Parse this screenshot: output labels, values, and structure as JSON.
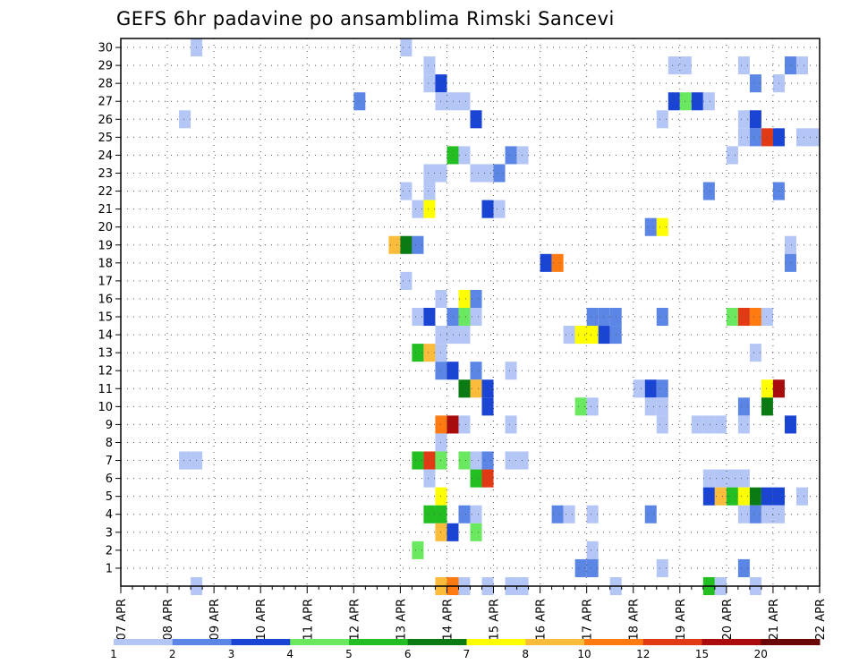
{
  "chart_data": {
    "type": "heatmap",
    "title": "GEFS 6hr padavine po ansamblima Rimski Sancevi",
    "xlabel": "",
    "ylabel": "",
    "x_ticks": [
      "07 APR",
      "08 APR",
      "09 APR",
      "10 APR",
      "11 APR",
      "12 APR",
      "13 APR",
      "14 APR",
      "15 APR",
      "16 APR",
      "17 APR",
      "18 APR",
      "19 APR",
      "20 APR",
      "21 APR",
      "22 APR"
    ],
    "y_ticks": [
      "1",
      "2",
      "3",
      "4",
      "5",
      "6",
      "7",
      "8",
      "9",
      "10",
      "11",
      "12",
      "13",
      "14",
      "15",
      "16",
      "17",
      "18",
      "19",
      "20",
      "21",
      "22",
      "23",
      "24",
      "25",
      "26",
      "27",
      "28",
      "29",
      "30"
    ],
    "xlim_steps": [
      0,
      60
    ],
    "ylim_members": [
      0,
      30
    ],
    "grid": true,
    "colorbar": {
      "labels": [
        "1",
        "2",
        "3",
        "4",
        "5",
        "6",
        "7",
        "8",
        "10",
        "12",
        "15",
        "20"
      ],
      "colors": [
        "#b4c6f5",
        "#5c86e6",
        "#1a44d4",
        "#6ae860",
        "#22be22",
        "#0a7a12",
        "#ffff00",
        "#fbbc3c",
        "#ff7a10",
        "#e23a14",
        "#a80c0c",
        "#6a0606"
      ]
    },
    "cells_note_units": "step index (6h steps from 07 APR 00Z), ensemble member, precipitation level index 1-12",
    "cells": [
      [
        6.5,
        30,
        1
      ],
      [
        24.5,
        30,
        1
      ],
      [
        26.5,
        29,
        1
      ],
      [
        47.5,
        29,
        1
      ],
      [
        48.5,
        29,
        1
      ],
      [
        53.5,
        29,
        1
      ],
      [
        57.5,
        29,
        2
      ],
      [
        58.5,
        29,
        1
      ],
      [
        26.5,
        28,
        1
      ],
      [
        27.5,
        28,
        3
      ],
      [
        54.5,
        28,
        2
      ],
      [
        56.5,
        28,
        1
      ],
      [
        20.5,
        27,
        2
      ],
      [
        27.5,
        27,
        1
      ],
      [
        28.5,
        27,
        1
      ],
      [
        29.5,
        27,
        1
      ],
      [
        47.5,
        27,
        3
      ],
      [
        48.5,
        27,
        4
      ],
      [
        49.5,
        27,
        3
      ],
      [
        50.5,
        27,
        1
      ],
      [
        5.5,
        26,
        1
      ],
      [
        30.5,
        26,
        3
      ],
      [
        46.5,
        26,
        1
      ],
      [
        53.5,
        26,
        1
      ],
      [
        54.5,
        26,
        3
      ],
      [
        53.5,
        25,
        1
      ],
      [
        54.5,
        25,
        2
      ],
      [
        55.5,
        25,
        10
      ],
      [
        56.5,
        25,
        3
      ],
      [
        58.5,
        25,
        1
      ],
      [
        59.5,
        25,
        1
      ],
      [
        28.5,
        24,
        5
      ],
      [
        29.5,
        24,
        1
      ],
      [
        33.5,
        24,
        2
      ],
      [
        34.5,
        24,
        1
      ],
      [
        52.5,
        24,
        1
      ],
      [
        26.5,
        23,
        1
      ],
      [
        27.5,
        23,
        1
      ],
      [
        30.5,
        23,
        1
      ],
      [
        31.5,
        23,
        1
      ],
      [
        32.5,
        23,
        2
      ],
      [
        24.5,
        22,
        1
      ],
      [
        26.5,
        22,
        1
      ],
      [
        50.5,
        22,
        2
      ],
      [
        56.5,
        22,
        2
      ],
      [
        25.5,
        21,
        1
      ],
      [
        26.5,
        21,
        7
      ],
      [
        31.5,
        21,
        3
      ],
      [
        32.5,
        21,
        1
      ],
      [
        45.5,
        20,
        2
      ],
      [
        46.5,
        20,
        7
      ],
      [
        23.5,
        19,
        8
      ],
      [
        24.5,
        19,
        6
      ],
      [
        25.5,
        19,
        2
      ],
      [
        57.5,
        19,
        1
      ],
      [
        36.5,
        18,
        3
      ],
      [
        37.5,
        18,
        9
      ],
      [
        57.5,
        18,
        2
      ],
      [
        24.5,
        17,
        1
      ],
      [
        27.5,
        16,
        1
      ],
      [
        29.5,
        16,
        7
      ],
      [
        30.5,
        16,
        2
      ],
      [
        25.5,
        15,
        1
      ],
      [
        26.5,
        15,
        3
      ],
      [
        28.5,
        15,
        2
      ],
      [
        29.5,
        15,
        4
      ],
      [
        30.5,
        15,
        1
      ],
      [
        40.5,
        15,
        2
      ],
      [
        41.5,
        15,
        2
      ],
      [
        42.5,
        15,
        2
      ],
      [
        46.5,
        15,
        2
      ],
      [
        52.5,
        15,
        4
      ],
      [
        53.5,
        15,
        10
      ],
      [
        54.5,
        15,
        9
      ],
      [
        55.5,
        15,
        1
      ],
      [
        27.5,
        14,
        1
      ],
      [
        28.5,
        14,
        1
      ],
      [
        29.5,
        14,
        1
      ],
      [
        38.5,
        14,
        1
      ],
      [
        39.5,
        14,
        7
      ],
      [
        40.5,
        14,
        7
      ],
      [
        41.5,
        14,
        3
      ],
      [
        42.5,
        14,
        2
      ],
      [
        25.5,
        13,
        5
      ],
      [
        26.5,
        13,
        8
      ],
      [
        27.5,
        13,
        1
      ],
      [
        54.5,
        13,
        1
      ],
      [
        27.5,
        12,
        2
      ],
      [
        28.5,
        12,
        3
      ],
      [
        30.5,
        12,
        2
      ],
      [
        33.5,
        12,
        1
      ],
      [
        29.5,
        11,
        6
      ],
      [
        30.5,
        11,
        8
      ],
      [
        31.5,
        11,
        3
      ],
      [
        44.5,
        11,
        1
      ],
      [
        45.5,
        11,
        3
      ],
      [
        46.5,
        11,
        2
      ],
      [
        55.5,
        11,
        7
      ],
      [
        56.5,
        11,
        11
      ],
      [
        31.5,
        10,
        3
      ],
      [
        39.5,
        10,
        4
      ],
      [
        40.5,
        10,
        1
      ],
      [
        45.5,
        10,
        1
      ],
      [
        46.5,
        10,
        1
      ],
      [
        53.5,
        10,
        2
      ],
      [
        55.5,
        10,
        6
      ],
      [
        27.5,
        9,
        9
      ],
      [
        28.5,
        9,
        11
      ],
      [
        29.5,
        9,
        1
      ],
      [
        33.5,
        9,
        1
      ],
      [
        46.5,
        9,
        1
      ],
      [
        49.5,
        9,
        1
      ],
      [
        50.5,
        9,
        1
      ],
      [
        51.5,
        9,
        1
      ],
      [
        53.5,
        9,
        1
      ],
      [
        57.5,
        9,
        3
      ],
      [
        27.5,
        8,
        1
      ],
      [
        5.5,
        7,
        1
      ],
      [
        6.5,
        7,
        1
      ],
      [
        25.5,
        7,
        5
      ],
      [
        26.5,
        7,
        10
      ],
      [
        27.5,
        7,
        4
      ],
      [
        29.5,
        7,
        4
      ],
      [
        30.5,
        7,
        1
      ],
      [
        31.5,
        7,
        2
      ],
      [
        33.5,
        7,
        1
      ],
      [
        34.5,
        7,
        1
      ],
      [
        26.5,
        6,
        1
      ],
      [
        30.5,
        6,
        5
      ],
      [
        31.5,
        6,
        10
      ],
      [
        50.5,
        6,
        1
      ],
      [
        51.5,
        6,
        1
      ],
      [
        52.5,
        6,
        1
      ],
      [
        53.5,
        6,
        1
      ],
      [
        27.5,
        5,
        7
      ],
      [
        50.5,
        5,
        3
      ],
      [
        51.5,
        5,
        8
      ],
      [
        52.5,
        5,
        5
      ],
      [
        53.5,
        5,
        7
      ],
      [
        54.5,
        5,
        6
      ],
      [
        55.5,
        5,
        3
      ],
      [
        56.5,
        5,
        3
      ],
      [
        58.5,
        5,
        1
      ],
      [
        26.5,
        4,
        5
      ],
      [
        27.5,
        4,
        5
      ],
      [
        29.5,
        4,
        2
      ],
      [
        30.5,
        4,
        1
      ],
      [
        37.5,
        4,
        2
      ],
      [
        38.5,
        4,
        1
      ],
      [
        40.5,
        4,
        1
      ],
      [
        45.5,
        4,
        2
      ],
      [
        53.5,
        4,
        1
      ],
      [
        54.5,
        4,
        2
      ],
      [
        55.5,
        4,
        1
      ],
      [
        56.5,
        4,
        1
      ],
      [
        27.5,
        3,
        8
      ],
      [
        28.5,
        3,
        3
      ],
      [
        30.5,
        3,
        4
      ],
      [
        25.5,
        2,
        4
      ],
      [
        40.5,
        2,
        1
      ],
      [
        39.5,
        1,
        2
      ],
      [
        40.5,
        1,
        2
      ],
      [
        46.5,
        1,
        1
      ],
      [
        53.5,
        1,
        2
      ],
      [
        6.5,
        0,
        1
      ],
      [
        27.5,
        0,
        8
      ],
      [
        28.5,
        0,
        9
      ],
      [
        29.5,
        0,
        1
      ],
      [
        31.5,
        0,
        1
      ],
      [
        33.5,
        0,
        1
      ],
      [
        34.5,
        0,
        1
      ],
      [
        42.5,
        0,
        1
      ],
      [
        50.5,
        0,
        5
      ],
      [
        51.5,
        0,
        1
      ],
      [
        54.5,
        0,
        1
      ]
    ]
  }
}
